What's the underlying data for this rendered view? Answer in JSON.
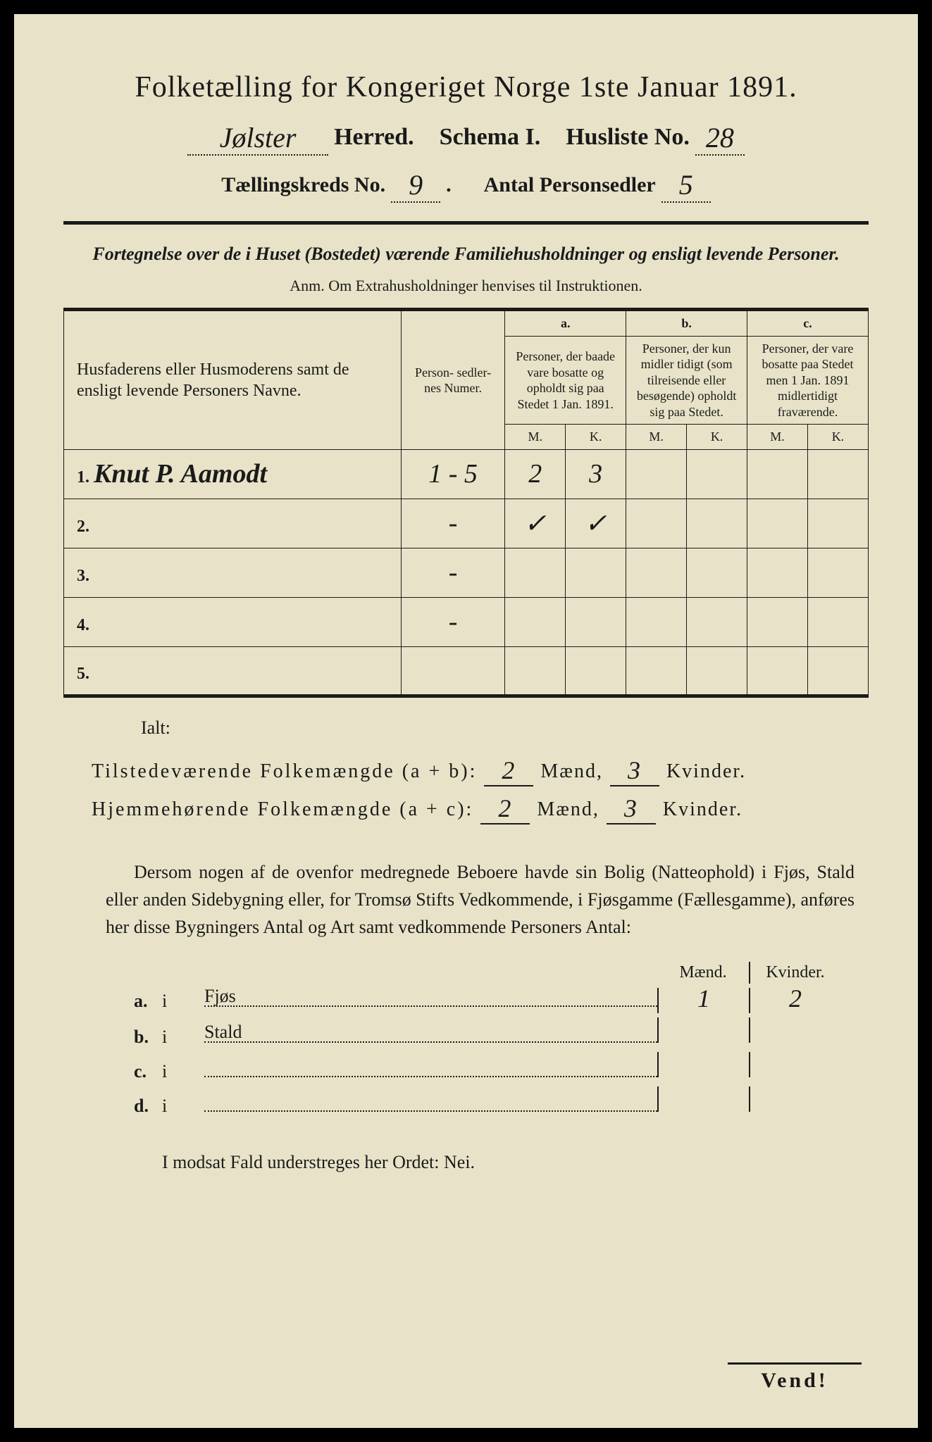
{
  "title": "Folketælling for Kongeriget Norge 1ste Januar 1891.",
  "header": {
    "herred_value": "Jølster",
    "herred_label": "Herred.",
    "schema_label": "Schema I.",
    "husliste_label": "Husliste No.",
    "husliste_value": "28",
    "kreds_label": "Tællingskreds No.",
    "kreds_value": "9",
    "antal_label": "Antal Personsedler",
    "antal_value": "5"
  },
  "subtitle": "Fortegnelse over de i Huset (Bostedet) værende Familiehusholdninger og ensligt levende Personer.",
  "anm": "Anm.  Om Extrahusholdninger henvises til Instruktionen.",
  "table": {
    "col_name": "Husfaderens eller Husmoderens samt de ensligt levende Personers Navne.",
    "col_num": "Person-\nsedler-\nnes\nNumer.",
    "col_a_label": "a.",
    "col_a": "Personer, der baade vare bosatte og opholdt sig paa Stedet 1 Jan. 1891.",
    "col_b_label": "b.",
    "col_b": "Personer, der kun midler tidigt (som tilreisende eller besøgende) opholdt sig paa Stedet.",
    "col_c_label": "c.",
    "col_c": "Personer, der vare bosatte paa Stedet men 1 Jan. 1891 midlertidigt fraværende.",
    "m": "M.",
    "k": "K.",
    "rows": [
      {
        "n": "1.",
        "name": "Knut P. Aamodt",
        "num": "1 - 5",
        "am": "2",
        "ak": "3",
        "bm": "",
        "bk": "",
        "cm": "",
        "ck": ""
      },
      {
        "n": "2.",
        "name": "",
        "num": "-",
        "am": "✓",
        "ak": "✓",
        "bm": "",
        "bk": "",
        "cm": "",
        "ck": ""
      },
      {
        "n": "3.",
        "name": "",
        "num": "-",
        "am": "",
        "ak": "",
        "bm": "",
        "bk": "",
        "cm": "",
        "ck": ""
      },
      {
        "n": "4.",
        "name": "",
        "num": "-",
        "am": "",
        "ak": "",
        "bm": "",
        "bk": "",
        "cm": "",
        "ck": ""
      },
      {
        "n": "5.",
        "name": "",
        "num": "",
        "am": "",
        "ak": "",
        "bm": "",
        "bk": "",
        "cm": "",
        "ck": ""
      }
    ]
  },
  "ialt": "Ialt:",
  "totals": {
    "line1_label": "Tilstedeværende Folkemængde (a + b):",
    "line1_m": "2",
    "line1_k": "3",
    "line2_label": "Hjemmehørende Folkemængde (a + c):",
    "line2_m": "2",
    "line2_k": "3",
    "maend": "Mænd,",
    "kvinder": "Kvinder."
  },
  "para": "Dersom nogen af de ovenfor medregnede Beboere havde sin Bolig (Natteophold) i Fjøs, Stald eller anden Sidebygning eller, for Tromsø Stifts Vedkommende, i Fjøsgamme (Fællesgamme), anføres her disse Bygningers Antal og Art samt vedkommende Personers Antal:",
  "buildings": {
    "hdr_m": "Mænd.",
    "hdr_k": "Kvinder.",
    "rows": [
      {
        "letter": "a.",
        "i": "i",
        "place": "Fjøs",
        "m": "1",
        "k": "2"
      },
      {
        "letter": "b.",
        "i": "i",
        "place": "Stald",
        "m": "",
        "k": ""
      },
      {
        "letter": "c.",
        "i": "i",
        "place": "",
        "m": "",
        "k": ""
      },
      {
        "letter": "d.",
        "i": "i",
        "place": "",
        "m": "",
        "k": ""
      }
    ]
  },
  "modsat": "I modsat Fald understreges her Ordet: Nei.",
  "vend": "Vend!",
  "colors": {
    "paper": "#e8e3c8",
    "ink": "#1a1a1a",
    "frame": "#000000"
  }
}
